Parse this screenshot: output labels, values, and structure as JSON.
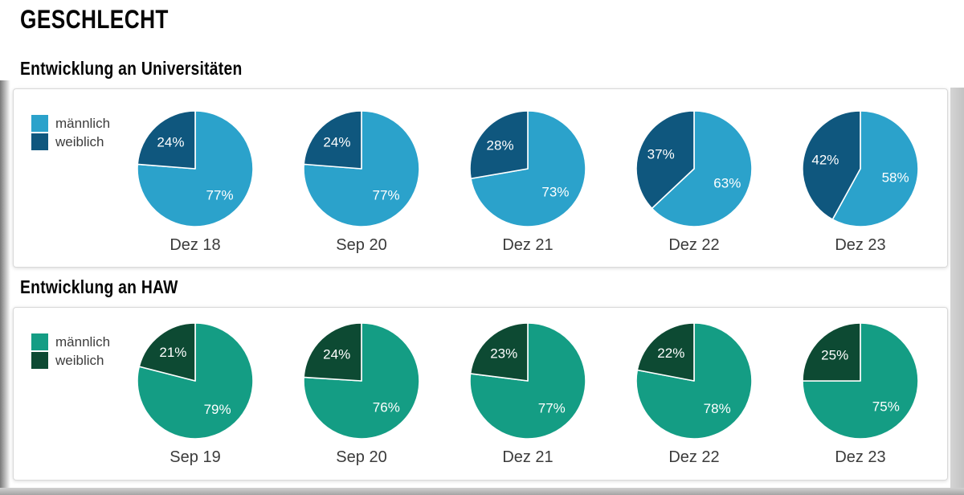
{
  "page": {
    "title": "GESCHLECHT"
  },
  "chart_data": [
    {
      "type": "pie",
      "title": "Entwicklung an Universitäten",
      "legend_position": "left",
      "slice_start": "12-oclock-clockwise",
      "legend": [
        {
          "label": "männlich",
          "color": "#2BA2CB"
        },
        {
          "label": "weiblich",
          "color": "#0F577E"
        }
      ],
      "pies": [
        {
          "label": "Dez 18",
          "values": [
            77,
            24
          ]
        },
        {
          "label": "Sep 20",
          "values": [
            77,
            24
          ]
        },
        {
          "label": "Dez 21",
          "values": [
            73,
            28
          ]
        },
        {
          "label": "Dez 22",
          "values": [
            63,
            37
          ]
        },
        {
          "label": "Dez 23",
          "values": [
            58,
            42
          ]
        }
      ],
      "value_suffix": "%"
    },
    {
      "type": "pie",
      "title": "Entwicklung an HAW",
      "legend_position": "left",
      "slice_start": "12-oclock-clockwise",
      "legend": [
        {
          "label": "männlich",
          "color": "#149D84"
        },
        {
          "label": "weiblich",
          "color": "#0D4A33"
        }
      ],
      "pies": [
        {
          "label": "Sep 19",
          "values": [
            79,
            21
          ]
        },
        {
          "label": "Sep 20",
          "values": [
            76,
            24
          ]
        },
        {
          "label": "Dez 21",
          "values": [
            77,
            23
          ]
        },
        {
          "label": "Dez 22",
          "values": [
            78,
            22
          ]
        },
        {
          "label": "Dez 23",
          "values": [
            75,
            25
          ]
        }
      ],
      "value_suffix": "%"
    }
  ]
}
